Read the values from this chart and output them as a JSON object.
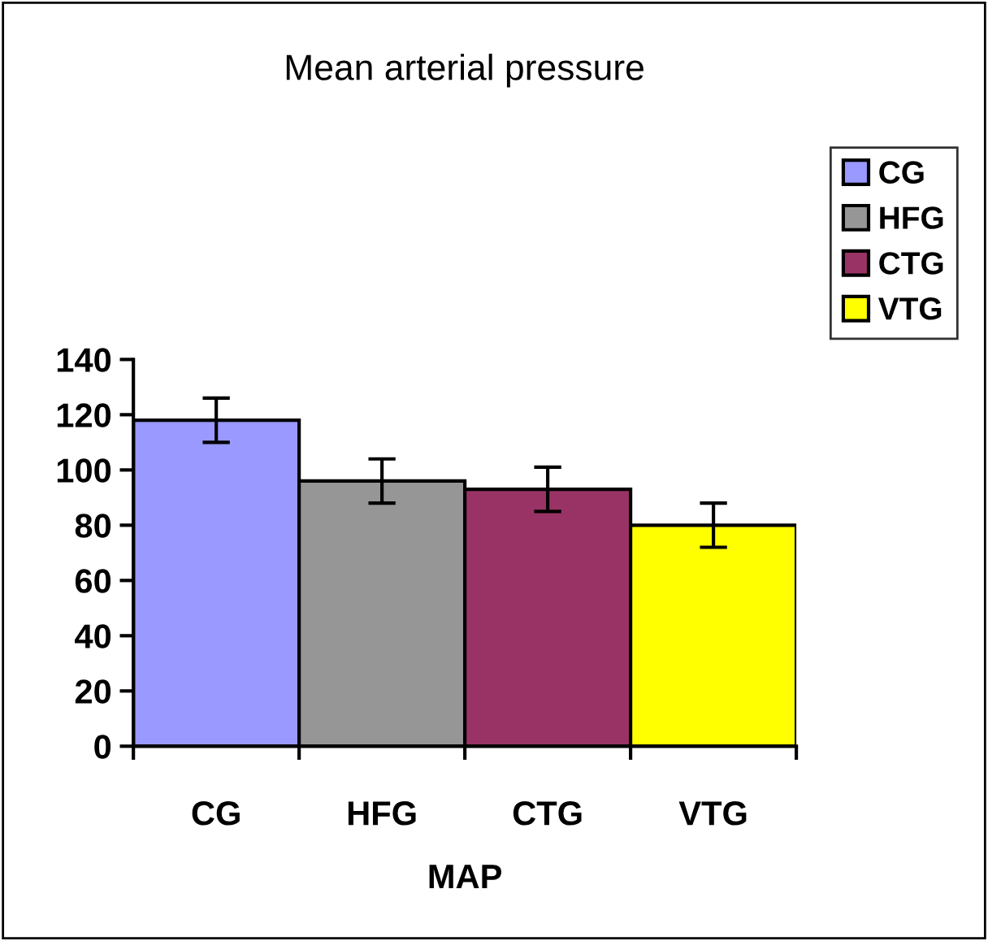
{
  "chart_data": {
    "type": "bar",
    "title": "Mean arterial pressure",
    "xlabel": "MAP",
    "categories": [
      "CG",
      "HFG",
      "CTG",
      "VTG"
    ],
    "series": [
      {
        "name": "CG",
        "color": "#9999ff",
        "values": [
          118,
          null,
          null,
          null
        ],
        "errors": [
          8,
          null,
          null,
          null
        ]
      },
      {
        "name": "HFG",
        "color": "#969696",
        "values": [
          null,
          96,
          null,
          null
        ],
        "errors": [
          null,
          8,
          null,
          null
        ]
      },
      {
        "name": "CTG",
        "color": "#993366",
        "values": [
          null,
          null,
          93,
          null
        ],
        "errors": [
          null,
          null,
          8,
          null
        ]
      },
      {
        "name": "VTG",
        "color": "#ffff00",
        "values": [
          null,
          null,
          null,
          80
        ],
        "errors": [
          null,
          null,
          null,
          8
        ]
      }
    ],
    "ylim": [
      0,
      140
    ],
    "yticks": [
      0,
      20,
      40,
      60,
      80,
      100,
      120,
      140
    ],
    "legend": "top right",
    "grid": false
  }
}
